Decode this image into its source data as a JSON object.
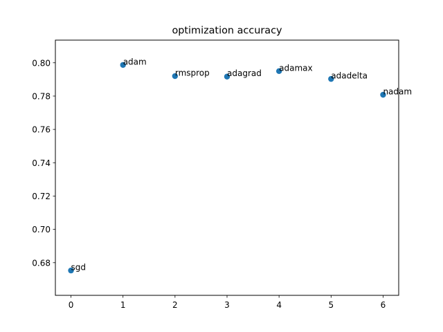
{
  "chart_data": {
    "type": "scatter",
    "title": "optimization accuracy",
    "xlabel": "",
    "ylabel": "",
    "xlim": [
      -0.3,
      6.3
    ],
    "ylim": [
      0.6604,
      0.8136
    ],
    "x_ticks": [
      0,
      1,
      2,
      3,
      4,
      5,
      6
    ],
    "y_ticks": [
      0.68,
      0.7,
      0.72,
      0.74,
      0.76,
      0.78,
      0.8
    ],
    "grid": false,
    "marker_color": "#1f77b4",
    "points": [
      {
        "x": 0,
        "y": 0.6753,
        "label": "sgd"
      },
      {
        "x": 1,
        "y": 0.7987,
        "label": "adam"
      },
      {
        "x": 2,
        "y": 0.792,
        "label": "rmsprop"
      },
      {
        "x": 3,
        "y": 0.7917,
        "label": "adagrad"
      },
      {
        "x": 4,
        "y": 0.795,
        "label": "adamax"
      },
      {
        "x": 5,
        "y": 0.7903,
        "label": "adadelta"
      },
      {
        "x": 6,
        "y": 0.7808,
        "label": "nadam"
      }
    ]
  }
}
